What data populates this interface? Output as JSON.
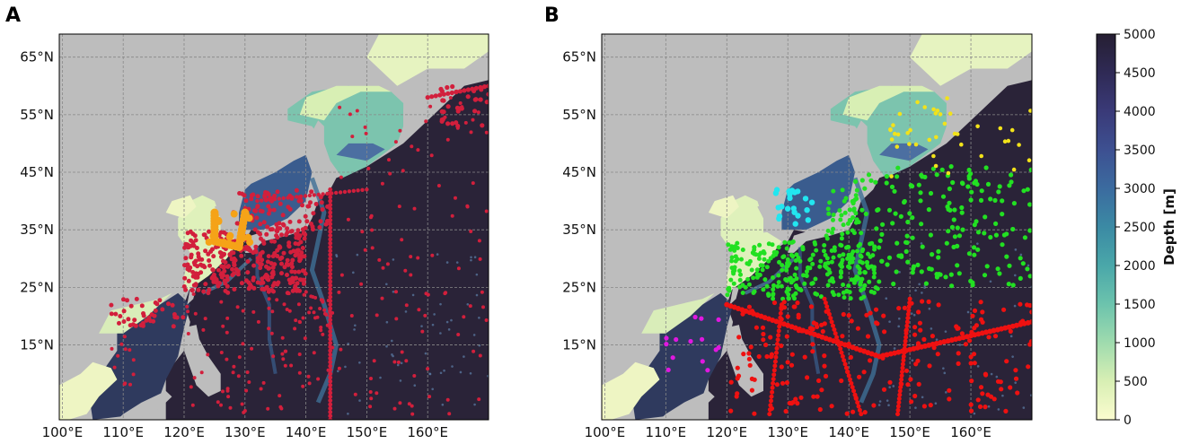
{
  "panels": [
    {
      "letter": "A",
      "lat_labels": [
        "65°N",
        "55°N",
        "45°N",
        "35°N",
        "25°N",
        "15°N"
      ],
      "lon_labels": [
        "100°E",
        "110°E",
        "120°E",
        "130°E",
        "140°E",
        "150°E",
        "160°E"
      ]
    },
    {
      "letter": "B",
      "lat_labels": [
        "65°N",
        "55°N",
        "45°N",
        "35°N",
        "25°N",
        "15°N"
      ],
      "lon_labels": [
        "100°E",
        "110°E",
        "120°E",
        "130°E",
        "140°E",
        "150°E",
        "160°E"
      ]
    }
  ],
  "colorbar": {
    "title": "Depth [m]",
    "ticks": [
      "5000",
      "4500",
      "4000",
      "3500",
      "3000",
      "2500",
      "2000",
      "1500",
      "1000",
      "500",
      "0"
    ]
  },
  "colors": {
    "land": "#bdbdbd",
    "deep_ocean": "#2a2338",
    "shelf": "#eef5c3",
    "mid": "#3f7f9a",
    "panelA_red": "#d21f3c",
    "panelA_orange": "#f5a318",
    "panelB_red": "#ee1111",
    "panelB_green": "#22e022",
    "panelB_yellow": "#f2e21a",
    "panelB_cyan": "#22e6f0",
    "panelB_magenta": "#e018e0"
  },
  "extent": {
    "lon": [
      99.5,
      170
    ],
    "lat": [
      2,
      69
    ]
  }
}
